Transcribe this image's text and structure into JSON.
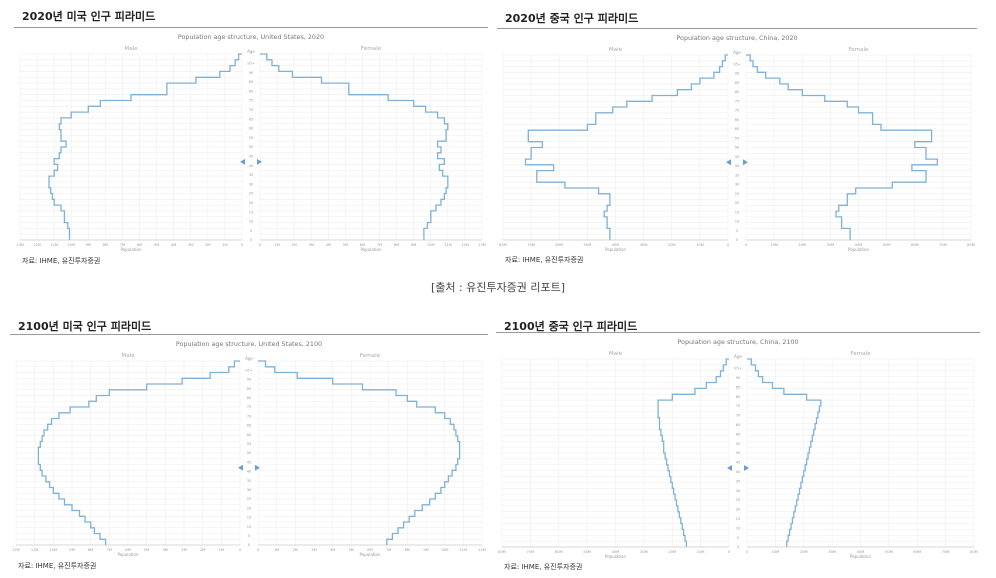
{
  "caption": "[출처 : 유진투자증권 리포트]",
  "panels": [
    {
      "title": "2020년 미국 인구 피라미드",
      "source": "자료: IHME, 유진투자증권",
      "chart_data": {
        "type": "bar",
        "orientation": "horizontal-pyramid",
        "title": "Population age structure, United States, 2020",
        "left_label": "Male",
        "right_label": "Female",
        "age_axis_label": "Age",
        "xlabel": "Population",
        "age_ticks": [
          "0",
          "5",
          "10",
          "15",
          "20",
          "25",
          "30",
          "35",
          "40",
          "45",
          "50",
          "55",
          "60",
          "65",
          "70",
          "75",
          "80",
          "85",
          "90",
          "95+"
        ],
        "xmax": 13,
        "x_ticks": [
          "13M",
          "12M",
          "11M",
          "10M",
          "9M",
          "8M",
          "7M",
          "6M",
          "5M",
          "4M",
          "3M",
          "2M",
          "1M",
          "0",
          "0",
          "1M",
          "2M",
          "3M",
          "4M",
          "5M",
          "6M",
          "7M",
          "8M",
          "9M",
          "10M",
          "11M",
          "12M",
          "13M"
        ],
        "male": [
          10.1,
          10.1,
          10.2,
          10.4,
          10.4,
          10.6,
          11.0,
          11.1,
          11.2,
          11.3,
          11.3,
          11.0,
          10.8,
          11.0,
          10.7,
          10.6,
          10.3,
          10.6,
          10.6,
          10.7,
          10.6,
          10.0,
          9.0,
          8.3,
          6.5,
          4.4,
          4.4,
          2.7,
          1.3,
          0.7,
          0.4,
          0.2
        ],
        "female": [
          9.6,
          9.6,
          9.8,
          10.0,
          10.0,
          10.3,
          10.6,
          10.8,
          10.9,
          11.0,
          11.0,
          10.7,
          10.5,
          10.8,
          10.4,
          10.6,
          10.4,
          10.9,
          10.9,
          11.0,
          10.8,
          10.4,
          9.7,
          9.0,
          7.5,
          5.2,
          5.2,
          3.6,
          1.9,
          1.1,
          0.7,
          0.4
        ],
        "line_color": "#7fb0d8"
      }
    },
    {
      "title": "2020년 중국 인구 피라미드",
      "source": "자료: IHME, 유진투자증권",
      "chart_data": {
        "type": "bar",
        "orientation": "horizontal-pyramid",
        "title": "Population age structure, China, 2020",
        "left_label": "Male",
        "right_label": "Female",
        "age_axis_label": "Age",
        "xlabel": "Population",
        "age_ticks": [
          "0",
          "5",
          "10",
          "15",
          "20",
          "25",
          "30",
          "35",
          "40",
          "45",
          "50",
          "55",
          "60",
          "65",
          "70",
          "75",
          "80",
          "85",
          "90",
          "95+"
        ],
        "xmax": 80,
        "x_ticks": [
          "80M",
          "70M",
          "60M",
          "50M",
          "40M",
          "30M",
          "20M",
          "10M",
          "0",
          "0",
          "10M",
          "20M",
          "30M",
          "40M",
          "50M",
          "60M",
          "70M",
          "80M"
        ],
        "male": [
          42,
          42,
          43,
          43,
          44,
          43,
          42,
          42,
          46,
          58,
          68,
          68,
          62,
          72,
          70,
          70,
          66,
          71,
          71,
          50,
          47,
          47,
          41,
          36,
          27,
          18,
          13,
          10,
          5,
          3,
          2,
          1
        ],
        "female": [
          37,
          37,
          34,
          34,
          32,
          33,
          36,
          36,
          39,
          52,
          64,
          64,
          59,
          68,
          64,
          64,
          60,
          66,
          66,
          48,
          45,
          45,
          40,
          36,
          28,
          20,
          15,
          12,
          7,
          4,
          2.5,
          1.5
        ],
        "line_color": "#7fb0d8"
      }
    },
    {
      "title": "2100년 미국 인구 피라미드",
      "source": "자료: IHME, 유진투자증권",
      "chart_data": {
        "type": "bar",
        "orientation": "horizontal-pyramid",
        "title": "Population age structure, United States, 2100",
        "left_label": "Male",
        "right_label": "Female",
        "age_axis_label": "Age",
        "xlabel": "Population",
        "age_ticks": [
          "0",
          "5",
          "10",
          "15",
          "20",
          "25",
          "30",
          "35",
          "40",
          "45",
          "50",
          "55",
          "60",
          "65",
          "70",
          "75",
          "80",
          "85",
          "90",
          "95+"
        ],
        "xmax": 12,
        "x_ticks": [
          "12M",
          "11M",
          "10M",
          "9M",
          "8M",
          "7M",
          "6M",
          "5M",
          "4M",
          "3M",
          "2M",
          "1M",
          "0",
          "0",
          "1M",
          "2M",
          "3M",
          "4M",
          "5M",
          "6M",
          "7M",
          "8M",
          "9M",
          "10M",
          "11M",
          "12M"
        ],
        "male": [
          7.2,
          7.5,
          7.8,
          8.0,
          8.3,
          8.6,
          9.0,
          9.4,
          9.7,
          10.0,
          10.2,
          10.4,
          10.6,
          10.7,
          10.8,
          10.8,
          10.8,
          10.7,
          10.6,
          10.5,
          10.3,
          10.1,
          9.7,
          9.1,
          8.1,
          7.7,
          7.0,
          5.0,
          3.1,
          1.6,
          0.6,
          0.3
        ],
        "female": [
          6.9,
          7.2,
          7.5,
          7.8,
          8.1,
          8.4,
          8.8,
          9.2,
          9.5,
          9.8,
          10.0,
          10.2,
          10.4,
          10.6,
          10.7,
          10.8,
          10.8,
          10.8,
          10.7,
          10.6,
          10.5,
          10.3,
          10.0,
          9.5,
          8.5,
          8.0,
          7.4,
          5.6,
          4.0,
          2.1,
          0.9,
          0.4
        ],
        "line_color": "#7fb0d8"
      }
    },
    {
      "title": "2100년 중국 인구 피라미드",
      "source": "자료: IHME, 유진투자증권",
      "chart_data": {
        "type": "bar",
        "orientation": "horizontal-pyramid",
        "title": "Population age structure, China, 2100",
        "left_label": "Male",
        "right_label": "Female",
        "age_axis_label": "Age",
        "xlabel": "Population",
        "age_ticks": [
          "0",
          "5",
          "10",
          "15",
          "20",
          "25",
          "30",
          "35",
          "40",
          "45",
          "50",
          "55",
          "60",
          "65",
          "70",
          "75",
          "80",
          "85",
          "90",
          "95+"
        ],
        "xmax": 80,
        "x_ticks": [
          "80M",
          "70M",
          "60M",
          "50M",
          "40M",
          "30M",
          "20M",
          "10M",
          "0",
          "0",
          "10M",
          "20M",
          "30M",
          "40M",
          "50M",
          "60M",
          "70M",
          "80M"
        ],
        "male": [
          15,
          15.5,
          16,
          16.5,
          17,
          17.5,
          18,
          18.5,
          19,
          19.5,
          20,
          20.5,
          21,
          21.5,
          22,
          22.5,
          23,
          23,
          23.5,
          24,
          24.5,
          24.5,
          25,
          25,
          25,
          20,
          12,
          8,
          4.5,
          3,
          2,
          1
        ],
        "female": [
          14,
          14.5,
          15,
          15.5,
          16,
          16.5,
          17,
          17.5,
          18,
          18.5,
          19,
          19.5,
          20,
          20.5,
          21,
          21.5,
          22,
          22.5,
          23,
          23.5,
          24,
          24.5,
          25,
          25.5,
          26,
          21,
          13,
          9,
          5.5,
          4,
          3,
          1.5
        ],
        "line_color": "#7fb0d8"
      }
    }
  ]
}
